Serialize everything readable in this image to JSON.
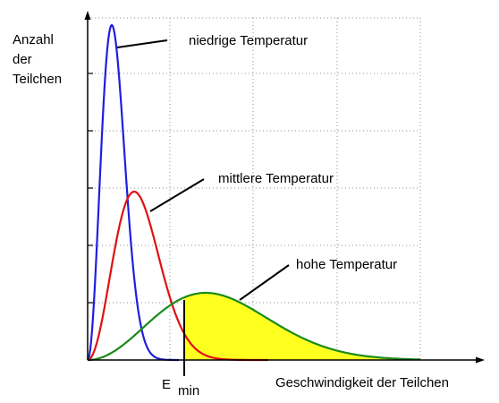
{
  "y_axis_label": [
    "Anzahl",
    "der",
    "Teilchen"
  ],
  "x_axis_label": "Geschwindigkeit der Teilchen",
  "threshold_label": {
    "main": "E",
    "subscript": "min"
  },
  "curves": [
    {
      "label": "niedrige Temperatur",
      "color": "#1f1fe0"
    },
    {
      "label": "mittlere Temperatur",
      "color": "#e01010"
    },
    {
      "label": "hohe Temperatur",
      "color": "#1a8a1a"
    }
  ],
  "shaded_area_color": "#ffff20"
}
